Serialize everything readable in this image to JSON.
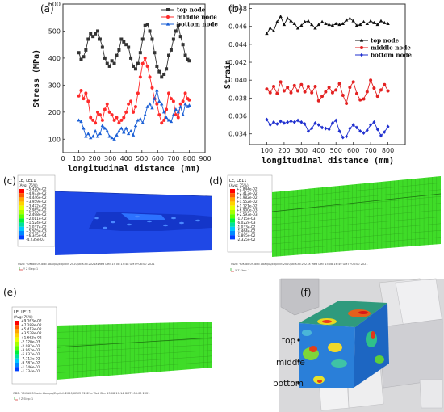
{
  "panels": {
    "a": {
      "label": "(a)"
    },
    "b": {
      "label": "(b)"
    },
    "c": {
      "label": "(c)"
    },
    "d": {
      "label": "(d)"
    },
    "e": {
      "label": "(e)"
    },
    "f": {
      "label": "(f)"
    }
  },
  "chart_data": [
    {
      "type": "line",
      "ylabel": "Stress (MPa)",
      "xlabel": "longitudinal distance (mm)",
      "xlim": [
        0,
        900
      ],
      "ylim": [
        50,
        600
      ],
      "xticks": [
        0,
        100,
        200,
        300,
        400,
        500,
        600,
        700,
        800,
        900
      ],
      "yticks": [
        100,
        200,
        300,
        400,
        500,
        600
      ],
      "legend": "top-right",
      "series": [
        {
          "name": "top node",
          "color": "#333333",
          "marker": "square",
          "x": [
            100,
            115,
            130,
            145,
            160,
            175,
            190,
            205,
            220,
            235,
            250,
            265,
            280,
            295,
            310,
            325,
            340,
            355,
            370,
            385,
            400,
            415,
            430,
            445,
            460,
            475,
            490,
            505,
            520,
            535,
            550,
            565,
            580,
            595,
            610,
            625,
            640,
            655,
            670,
            685,
            700,
            715,
            730,
            745,
            760,
            775,
            790,
            800
          ],
          "y": [
            420,
            395,
            405,
            430,
            470,
            490,
            480,
            490,
            500,
            470,
            440,
            400,
            380,
            370,
            390,
            380,
            410,
            430,
            470,
            460,
            450,
            440,
            400,
            370,
            360,
            380,
            420,
            470,
            520,
            525,
            500,
            470,
            420,
            370,
            350,
            330,
            340,
            360,
            410,
            430,
            470,
            500,
            520,
            480,
            450,
            410,
            395,
            390
          ]
        },
        {
          "name": "middle node",
          "color": "#ff2a2a",
          "marker": "circle",
          "x": [
            100,
            115,
            130,
            145,
            160,
            175,
            190,
            205,
            220,
            235,
            250,
            265,
            280,
            295,
            310,
            325,
            340,
            355,
            370,
            385,
            400,
            415,
            430,
            445,
            460,
            475,
            490,
            505,
            520,
            535,
            550,
            565,
            580,
            595,
            610,
            625,
            640,
            655,
            670,
            685,
            700,
            715,
            730,
            745,
            760,
            775,
            790,
            800
          ],
          "y": [
            260,
            280,
            250,
            270,
            240,
            180,
            170,
            160,
            200,
            190,
            170,
            210,
            230,
            200,
            190,
            170,
            180,
            160,
            170,
            180,
            200,
            230,
            240,
            200,
            220,
            270,
            330,
            380,
            400,
            370,
            330,
            290,
            250,
            230,
            190,
            160,
            170,
            210,
            270,
            250,
            240,
            190,
            180,
            230,
            240,
            270,
            250,
            245
          ]
        },
        {
          "name": "bottom node",
          "color": "#1a5fd6",
          "marker": "triangle",
          "x": [
            100,
            115,
            130,
            145,
            160,
            175,
            190,
            205,
            220,
            235,
            250,
            265,
            280,
            295,
            310,
            325,
            340,
            355,
            370,
            385,
            400,
            415,
            430,
            445,
            460,
            475,
            490,
            505,
            520,
            535,
            550,
            565,
            580,
            595,
            610,
            625,
            640,
            655,
            670,
            685,
            700,
            715,
            730,
            745,
            760,
            775,
            790,
            800
          ],
          "y": [
            170,
            165,
            140,
            110,
            120,
            105,
            110,
            130,
            110,
            120,
            150,
            140,
            130,
            110,
            105,
            100,
            115,
            130,
            140,
            125,
            140,
            120,
            130,
            115,
            150,
            170,
            175,
            160,
            190,
            220,
            230,
            215,
            250,
            280,
            240,
            230,
            200,
            180,
            170,
            165,
            190,
            210,
            200,
            220,
            190,
            230,
            220,
            225
          ]
        }
      ]
    },
    {
      "type": "line",
      "ylabel": "Strain",
      "xlabel": "longitudinal distance (mm)",
      "xlim": [
        0,
        900
      ],
      "ylim": [
        0.0328,
        0.0485
      ],
      "xticks": [
        100,
        200,
        300,
        400,
        500,
        600,
        700,
        800
      ],
      "yticks": [
        0.034,
        0.036,
        0.038,
        0.04,
        0.042,
        0.044,
        0.046,
        0.048
      ],
      "legend": "top-right",
      "series": [
        {
          "name": "top node",
          "color": "#111111",
          "marker": "triangle",
          "x": [
            100,
            120,
            140,
            160,
            180,
            200,
            220,
            240,
            260,
            280,
            300,
            320,
            340,
            360,
            380,
            400,
            420,
            440,
            460,
            480,
            500,
            520,
            540,
            560,
            580,
            600,
            620,
            640,
            660,
            680,
            700,
            720,
            740,
            760,
            780,
            800
          ],
          "y": [
            0.0452,
            0.0458,
            0.0455,
            0.0465,
            0.0471,
            0.0462,
            0.0469,
            0.0466,
            0.0463,
            0.0458,
            0.0461,
            0.0465,
            0.0466,
            0.0462,
            0.0458,
            0.0462,
            0.0465,
            0.0463,
            0.0462,
            0.0461,
            0.0463,
            0.0462,
            0.0463,
            0.0467,
            0.0469,
            0.0466,
            0.0461,
            0.0462,
            0.0465,
            0.0463,
            0.0466,
            0.0464,
            0.0462,
            0.0466,
            0.0464,
            0.0463
          ]
        },
        {
          "name": "middle node",
          "color": "#e32222",
          "marker": "circle",
          "x": [
            100,
            120,
            140,
            160,
            180,
            200,
            220,
            240,
            260,
            280,
            300,
            320,
            340,
            360,
            380,
            400,
            420,
            440,
            460,
            480,
            500,
            520,
            540,
            560,
            580,
            600,
            620,
            640,
            660,
            680,
            700,
            720,
            740,
            760,
            780,
            800
          ],
          "y": [
            0.039,
            0.0386,
            0.0393,
            0.0385,
            0.0398,
            0.0388,
            0.0392,
            0.0386,
            0.0394,
            0.0388,
            0.0395,
            0.0387,
            0.0393,
            0.0386,
            0.0393,
            0.0377,
            0.0382,
            0.0387,
            0.0392,
            0.0386,
            0.0389,
            0.0396,
            0.0383,
            0.0374,
            0.0392,
            0.0398,
            0.0385,
            0.0378,
            0.0379,
            0.0387,
            0.04,
            0.0391,
            0.0382,
            0.0389,
            0.0395,
            0.0388
          ]
        },
        {
          "name": "bottom node",
          "color": "#1f2fcf",
          "marker": "diamond",
          "x": [
            100,
            120,
            140,
            160,
            180,
            200,
            220,
            240,
            260,
            280,
            300,
            320,
            340,
            360,
            380,
            400,
            420,
            440,
            460,
            480,
            500,
            520,
            540,
            560,
            580,
            600,
            620,
            640,
            660,
            680,
            700,
            720,
            740,
            760,
            780,
            800
          ],
          "y": [
            0.0356,
            0.035,
            0.0353,
            0.0351,
            0.0354,
            0.0352,
            0.0353,
            0.0354,
            0.0353,
            0.0355,
            0.0353,
            0.0351,
            0.0343,
            0.0346,
            0.0352,
            0.035,
            0.0347,
            0.0346,
            0.0345,
            0.0352,
            0.0355,
            0.0343,
            0.0336,
            0.0337,
            0.0346,
            0.035,
            0.0347,
            0.0343,
            0.0341,
            0.0344,
            0.035,
            0.0353,
            0.0345,
            0.0338,
            0.0342,
            0.0348
          ]
        }
      ]
    }
  ],
  "contours": {
    "c": {
      "title": "LE, LE11",
      "avg": "(Avg: 75%)",
      "values": [
        "+5.420e-02",
        "+4.933e-02",
        "+4.446e-02",
        "+3.959e-02",
        "+3.472e-02",
        "+2.985e-02",
        "+2.498e-02",
        "+2.011e-02",
        "+1.524e-02",
        "+1.037e-02",
        "+5.505e-03",
        "+6.345e-04",
        "-4.235e-03"
      ],
      "footer": "ODB: Y0KtölE09.odb   Abaqus/Explicit 2020/XEX3 E2021a   Wed Dec 15 08:15:48 GMT+08:00 2021"
    },
    "d": {
      "title": "LE, LE11",
      "avg": "(Avg: 75%)",
      "values": [
        "+2.844e-02",
        "+2.413e-02",
        "+1.982e-02",
        "+1.552e-02",
        "+1.121e-02",
        "+6.900e-03",
        "+2.593e-03",
        "-1.715e-03",
        "-6.022e-03",
        "-1.033e-02",
        "-1.464e-02",
        "-1.895e-02",
        "-2.325e-02"
      ],
      "footer": "ODB: Y0KtölE09.odb   Abaqus/Explicit 2020/XEX3 E2021a   Wed Dec 15 08:16:49 GMT+08:00 2021"
    },
    "e": {
      "title": "LE, LE11",
      "avg": "(Avg: 75%)",
      "values": [
        "+9.163e-02",
        "+7.288e-02",
        "+5.413e-02",
        "+3.538e-02",
        "+1.663e-02",
        "-2.120e-03",
        "-2.087e-02",
        "-3.962e-02",
        "-5.837e-02",
        "-7.712e-02",
        "-9.587e-02",
        "-1.146e-01",
        "-1.334e-01"
      ],
      "footer": "ODB: Y0KtölE09.odb   Abaqus/Explicit 2020/XEX3 E2021a   Wed Dec 15 08:17:14 GMT+08:00 2021"
    },
    "colors": [
      "#ff0000",
      "#ff5a00",
      "#ffa500",
      "#ffd400",
      "#e6ff00",
      "#a6ff00",
      "#5cff00",
      "#00f03c",
      "#00e0a0",
      "#00c8ff",
      "#0088ff",
      "#0040ff",
      "#0000ff"
    ]
  },
  "panel_f": {
    "labels": [
      "top",
      "middle",
      "bottom"
    ]
  }
}
